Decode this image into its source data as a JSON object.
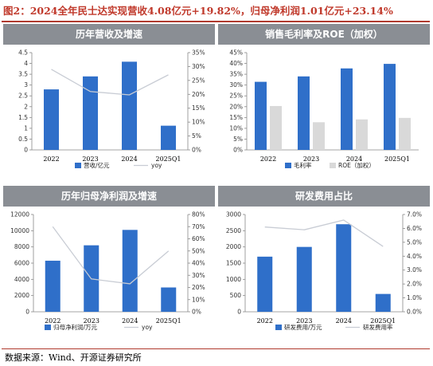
{
  "figure_title": "图2：2024全年民士达实现营收4.08亿元+19.82%，归母净利润1.01亿元+23.14%",
  "source": "数据来源：Wind、开源证券研究所",
  "colors": {
    "bar_blue": "#2f6fc9",
    "bar_gray": "#d9d9d9",
    "line_gray": "#c8ccd4",
    "header_bg": "#8a8e94"
  },
  "chart_data": [
    {
      "type": "bar",
      "title": "历年营收及增速",
      "categories": [
        "2022",
        "2023",
        "2024",
        "2025Q1"
      ],
      "series": [
        {
          "name": "营收/亿元",
          "kind": "bar",
          "axis": "left",
          "values": [
            2.8,
            3.4,
            4.08,
            1.12
          ]
        },
        {
          "name": "yoy",
          "kind": "line",
          "axis": "right",
          "values": [
            29,
            21,
            19.8,
            27
          ]
        }
      ],
      "y_left": {
        "min": 0,
        "max": 4.5,
        "step": 0.5,
        "ticks": [
          "0",
          "0.5",
          "1",
          "1.5",
          "2",
          "2.5",
          "3",
          "3.5",
          "4",
          "4.5"
        ]
      },
      "y_right": {
        "min": 0,
        "max": 35,
        "step": 5,
        "ticks": [
          "0%",
          "5%",
          "10%",
          "15%",
          "20%",
          "25%",
          "30%",
          "35%"
        ]
      },
      "legend": [
        "营收/亿元",
        "yoy"
      ]
    },
    {
      "type": "bar",
      "title": "销售毛利率及ROE（加权）",
      "categories": [
        "2022",
        "2023",
        "2024",
        "2025Q1"
      ],
      "series": [
        {
          "name": "毛利率",
          "kind": "bar",
          "axis": "left",
          "values": [
            31.5,
            34,
            37.7,
            39.8
          ]
        },
        {
          "name": "ROE（加权）",
          "kind": "bar",
          "axis": "left",
          "values": [
            20.3,
            12.8,
            14.1,
            14.8
          ]
        }
      ],
      "y_left": {
        "min": 0,
        "max": 45,
        "step": 5,
        "ticks": [
          "0%",
          "5%",
          "10%",
          "15%",
          "20%",
          "25%",
          "30%",
          "35%",
          "40%",
          "45%"
        ]
      },
      "legend": [
        "毛利率",
        "ROE（加权）"
      ]
    },
    {
      "type": "bar",
      "title": "历年归母净利润及增速",
      "categories": [
        "2022",
        "2023",
        "2024",
        "2025Q1"
      ],
      "series": [
        {
          "name": "归母净利润/万元",
          "kind": "bar",
          "axis": "left",
          "values": [
            6300,
            8200,
            10100,
            3000
          ]
        },
        {
          "name": "yoy",
          "kind": "line",
          "axis": "right",
          "values": [
            70,
            27,
            23,
            50
          ]
        }
      ],
      "y_left": {
        "min": 0,
        "max": 12000,
        "step": 2000,
        "ticks": [
          "0",
          "2000",
          "4000",
          "6000",
          "8000",
          "10000",
          "12000"
        ]
      },
      "y_right": {
        "min": 0,
        "max": 80,
        "step": 10,
        "ticks": [
          "0%",
          "10%",
          "20%",
          "30%",
          "40%",
          "50%",
          "60%",
          "70%",
          "80%"
        ]
      },
      "legend": [
        "归母净利润/万元",
        "yoy"
      ]
    },
    {
      "type": "bar",
      "title": "研发费用占比",
      "categories": [
        "2022",
        "2023",
        "2024",
        "2025Q1"
      ],
      "series": [
        {
          "name": "研发费用/万元",
          "kind": "bar",
          "axis": "left",
          "values": [
            1700,
            2000,
            2700,
            550
          ]
        },
        {
          "name": "研发费用率",
          "kind": "line",
          "axis": "right",
          "values": [
            6.1,
            5.9,
            6.6,
            4.7
          ]
        }
      ],
      "y_left": {
        "min": 0,
        "max": 3000,
        "step": 500,
        "ticks": [
          "0",
          "500",
          "1000",
          "1500",
          "2000",
          "2500",
          "3000"
        ]
      },
      "y_right": {
        "min": 0,
        "max": 7,
        "step": 1,
        "ticks": [
          "0.0%",
          "1.0%",
          "2.0%",
          "3.0%",
          "4.0%",
          "5.0%",
          "6.0%",
          "7.0%"
        ]
      },
      "legend": [
        "研发费用/万元",
        "研发费用率"
      ]
    }
  ]
}
